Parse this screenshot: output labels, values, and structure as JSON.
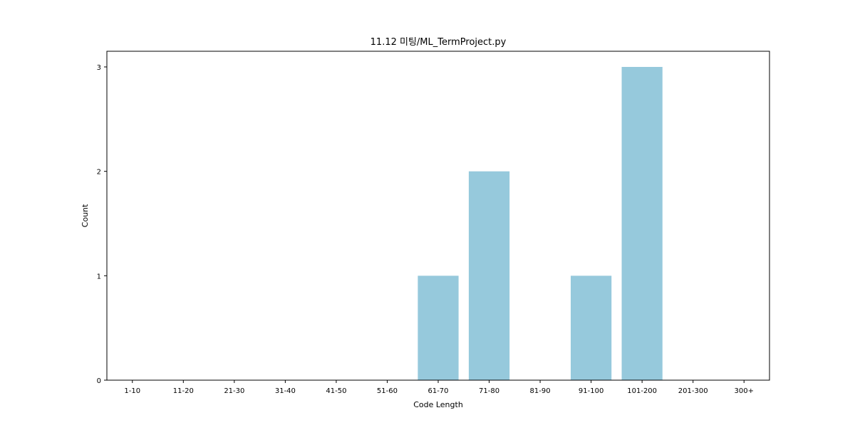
{
  "chart_data": {
    "type": "bar",
    "title": "11.12 미팅/ML_TermProject.py",
    "xlabel": "Code Length",
    "ylabel": "Count",
    "categories": [
      "1-10",
      "11-20",
      "21-30",
      "31-40",
      "41-50",
      "51-60",
      "61-70",
      "71-80",
      "81-90",
      "91-100",
      "101-200",
      "201-300",
      "300+"
    ],
    "values": [
      0,
      0,
      0,
      0,
      0,
      0,
      1,
      2,
      0,
      1,
      3,
      0,
      0
    ],
    "ylim": [
      0,
      3.15
    ],
    "yticks": [
      0,
      1,
      2,
      3
    ],
    "grid": false,
    "bar_color": "#96c9dc"
  }
}
